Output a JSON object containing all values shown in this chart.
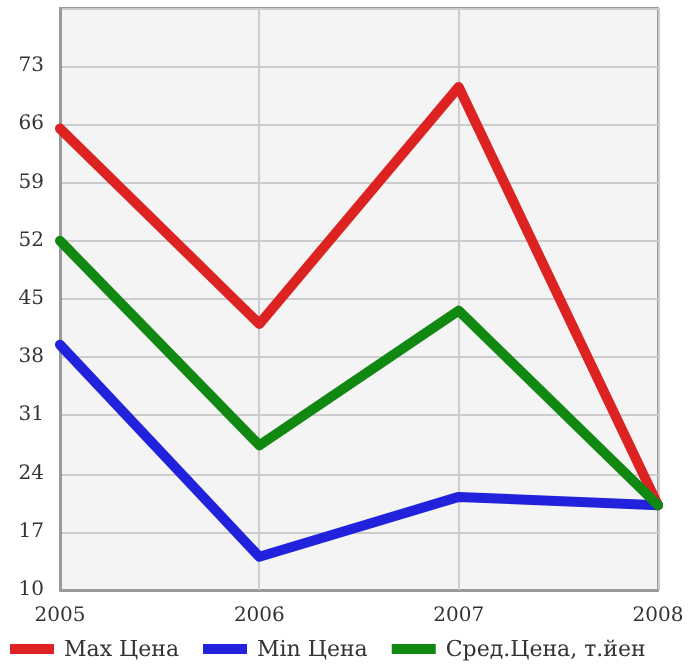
{
  "chart_data": {
    "type": "line",
    "categories": [
      "2005",
      "2006",
      "2007",
      "2008"
    ],
    "series": [
      {
        "name": "Max Цена",
        "color": "#dd2222",
        "values": [
          65.5,
          42,
          70.5,
          20.2
        ]
      },
      {
        "name": "Min Цена",
        "color": "#2222dd",
        "values": [
          39.5,
          14,
          21.2,
          20.2
        ]
      },
      {
        "name": "Сред.Цена, т.йен",
        "color": "#118811",
        "values": [
          52,
          27.4,
          43.6,
          20.2
        ]
      }
    ],
    "ylim": [
      10,
      80
    ],
    "yticks": [
      10,
      17,
      24,
      31,
      38,
      45,
      52,
      59,
      66,
      73,
      {
        "value": 80,
        "label": null
      }
    ],
    "grid": true,
    "legend": "bottom",
    "marker": "none",
    "line_style": "solid"
  }
}
